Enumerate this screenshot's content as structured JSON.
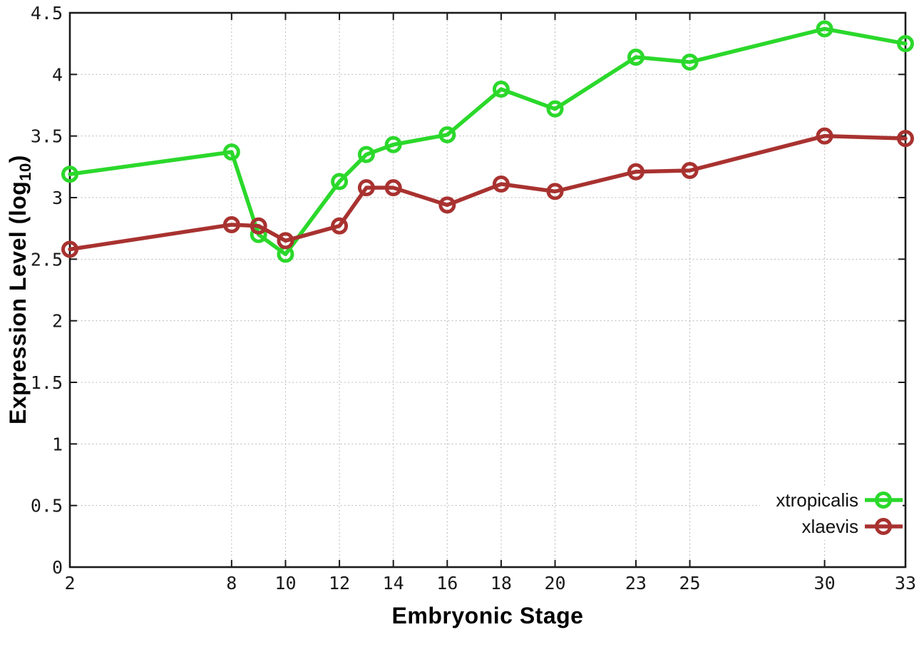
{
  "chart_data": {
    "type": "line",
    "title": "",
    "xlabel": "Embryonic Stage",
    "ylabel": "Expression Level (log10)",
    "ylabel_parts": {
      "pre": "Expression Level (log",
      "sub": "10",
      "post": ")"
    },
    "xlim": [
      2,
      33
    ],
    "ylim": [
      0,
      4.5
    ],
    "grid": true,
    "legend_position": "bottom-right",
    "x": [
      2,
      8,
      9,
      10,
      12,
      13,
      14,
      16,
      18,
      20,
      23,
      25,
      30,
      33
    ],
    "xticks": [
      2,
      8,
      10,
      12,
      14,
      16,
      18,
      20,
      23,
      25,
      30,
      33
    ],
    "xtick_labels": [
      "2",
      "8",
      "10",
      "12",
      "14",
      "16",
      "18",
      "20",
      "23",
      "25",
      "30",
      "33"
    ],
    "yticks": [
      0,
      0.5,
      1,
      1.5,
      2,
      2.5,
      3,
      3.5,
      4,
      4.5
    ],
    "ytick_labels": [
      "0",
      "0.5",
      "1",
      "1.5",
      "2",
      "2.5",
      "3",
      "3.5",
      "4",
      "4.5"
    ],
    "series": [
      {
        "name": "xtropicalis",
        "color": "#2bd82b",
        "values": [
          3.19,
          3.37,
          2.7,
          2.54,
          3.13,
          3.35,
          3.43,
          3.51,
          3.88,
          3.72,
          4.14,
          4.1,
          4.37,
          4.25
        ]
      },
      {
        "name": "xlaevis",
        "color": "#a83230",
        "values": [
          2.58,
          2.78,
          2.77,
          2.65,
          2.77,
          3.08,
          3.08,
          2.94,
          3.11,
          3.05,
          3.21,
          3.22,
          3.5,
          3.48
        ]
      }
    ],
    "colors": {
      "grid": "#b8b8b8",
      "border": "#1a1a1a",
      "tick_text": "#1a1a1a",
      "background": "#ffffff"
    }
  }
}
